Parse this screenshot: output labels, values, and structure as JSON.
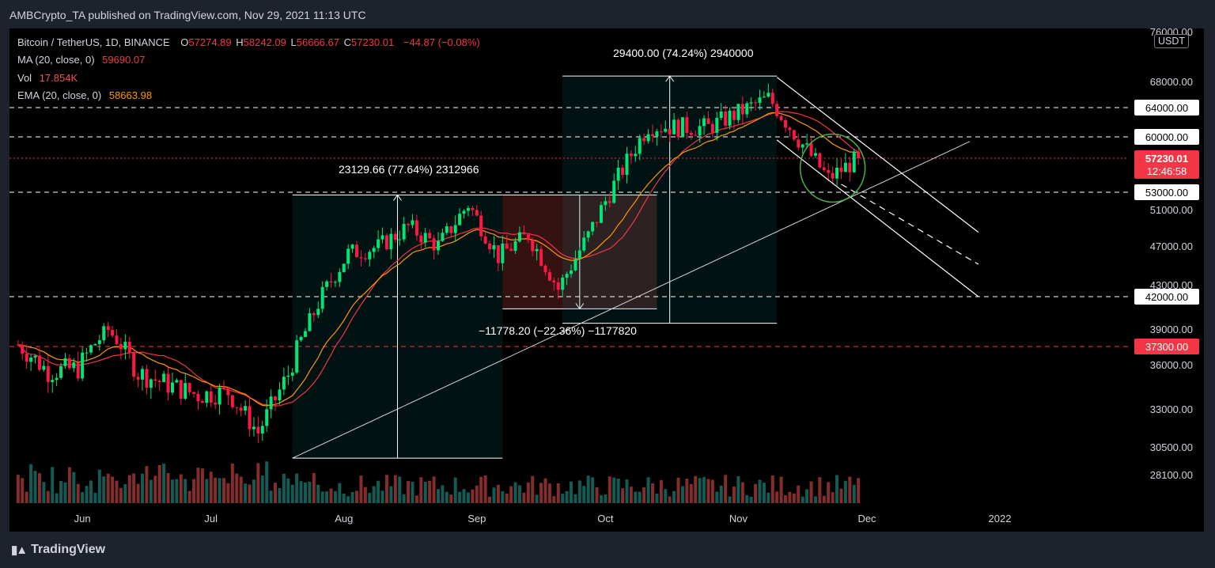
{
  "header": {
    "publisher_line": "AMBCrypto_TA published on TradingView.com, Nov 29, 2021 11:13 UTC"
  },
  "legend": {
    "symbol": "Bitcoin / TetherUS, 1D, BINANCE",
    "o_label": "O",
    "o_value": "57274.89",
    "h_label": "H",
    "h_value": "58242.09",
    "l_label": "L",
    "l_value": "56666.67",
    "c_label": "C",
    "c_value": "57230.01",
    "change": "−44.87 (−0.08%)",
    "ma_label": "MA (20, close, 0)",
    "ma_value": "59690.07",
    "vol_label": "Vol",
    "vol_value": "17.854K",
    "ema_label": "EMA (20, close, 0)",
    "ema_value": "58663.98"
  },
  "currency_box": "USDT",
  "price_axis_labels": [
    "76000.00",
    "68000.00",
    "64000.00",
    "60000.00",
    "53000.00",
    "51000.00",
    "47000.00",
    "43000.00",
    "42000.00",
    "39000.00",
    "37300.00",
    "36000.00",
    "33000.00",
    "30500.00",
    "28100.00"
  ],
  "last_price": {
    "price": "57230.01",
    "countdown": "12:46:58"
  },
  "highlight_levels": {
    "l64000": "64000.00",
    "l60000": "60000.00",
    "l53000": "53000.00",
    "l42000": "42000.00",
    "l37300": "37300.00"
  },
  "time_axis": [
    "Jun",
    "Jul",
    "Aug",
    "Sep",
    "Oct",
    "Nov",
    "Dec",
    "2022"
  ],
  "annotations": {
    "range_aug": "23129.66 (77.64%) 2312966",
    "range_sep": "−11778.20 (−22.36%) −1177820",
    "range_oct": "29400.00 (74.24%) 2940000"
  },
  "footer": {
    "brand": "TradingView"
  },
  "colors": {
    "up": "#26a69a",
    "down": "#ef5350",
    "up_bright": "#00e676",
    "down_bright": "#ff1744",
    "ma": "#f23645",
    "ema": "#ff9800",
    "background": "#000000"
  },
  "chart_data": {
    "type": "candlestick",
    "title": "Bitcoin / TetherUS, 1D, BINANCE",
    "x_range": [
      "2021-05-17",
      "2022-01-10"
    ],
    "y_range": [
      28100,
      76000
    ],
    "x_ticks": [
      "Jun",
      "Jul",
      "Aug",
      "Sep",
      "Oct",
      "Nov",
      "Dec",
      "2022"
    ],
    "candles_weekly_close_approx": [
      {
        "week": "2021-05-17",
        "close": 37500
      },
      {
        "week": "2021-05-24",
        "close": 35600
      },
      {
        "week": "2021-05-31",
        "close": 35800
      },
      {
        "week": "2021-06-07",
        "close": 39000
      },
      {
        "week": "2021-06-14",
        "close": 35500
      },
      {
        "week": "2021-06-21",
        "close": 34700
      },
      {
        "week": "2021-06-28",
        "close": 34000
      },
      {
        "week": "2021-07-05",
        "close": 34200
      },
      {
        "week": "2021-07-12",
        "close": 31500
      },
      {
        "week": "2021-07-19",
        "close": 35400
      },
      {
        "week": "2021-07-26",
        "close": 41400
      },
      {
        "week": "2021-08-02",
        "close": 46300
      },
      {
        "week": "2021-08-09",
        "close": 47000
      },
      {
        "week": "2021-08-16",
        "close": 49200
      },
      {
        "week": "2021-08-23",
        "close": 47100
      },
      {
        "week": "2021-08-30",
        "close": 51700
      },
      {
        "week": "2021-09-06",
        "close": 46000
      },
      {
        "week": "2021-09-13",
        "close": 48300
      },
      {
        "week": "2021-09-20",
        "close": 42700
      },
      {
        "week": "2021-09-27",
        "close": 48200
      },
      {
        "week": "2021-10-04",
        "close": 54900
      },
      {
        "week": "2021-10-11",
        "close": 61500
      },
      {
        "week": "2021-10-18",
        "close": 61300
      },
      {
        "week": "2021-10-25",
        "close": 61300
      },
      {
        "week": "2021-11-01",
        "close": 63300
      },
      {
        "week": "2021-11-08",
        "close": 65500
      },
      {
        "week": "2021-11-15",
        "close": 59700
      },
      {
        "week": "2021-11-22",
        "close": 54700
      },
      {
        "week": "2021-11-29",
        "close": 57230
      }
    ],
    "last_close": 57230.01,
    "levels": [
      64000,
      60000,
      53000,
      42000,
      37300
    ],
    "measures": [
      {
        "label": "23129.66 (77.64%) 2312966",
        "from_price": 29600,
        "to_price": 52700,
        "from_date": "2021-07-20",
        "to_date": "2021-09-07"
      },
      {
        "label": "−11778.20 (−22.36%) −1177820",
        "from_price": 52700,
        "to_price": 40900,
        "from_date": "2021-09-07",
        "to_date": "2021-10-13"
      },
      {
        "label": "29400.00 (74.24%) 2940000",
        "from_price": 39600,
        "to_price": 69000,
        "from_date": "2021-09-21",
        "to_date": "2021-11-10"
      }
    ],
    "indicators": [
      "MA (20, close, 0)",
      "EMA (20, close, 0)",
      "Vol"
    ],
    "grid": false
  }
}
